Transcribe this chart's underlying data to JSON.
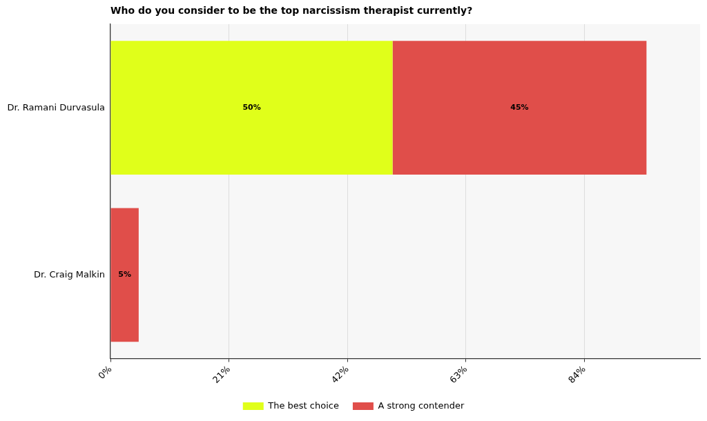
{
  "chart_data": {
    "type": "bar",
    "orientation": "horizontal",
    "stacked": true,
    "title": "Who do you consider to be the top narcissism therapist currently?",
    "categories": [
      "Dr. Ramani Durvasula",
      "Dr. Craig Malkin"
    ],
    "series": [
      {
        "name": "The best choice",
        "color": "#e0ff1a",
        "values": [
          50,
          null
        ],
        "value_labels": [
          "50%",
          null
        ]
      },
      {
        "name": "A strong contender",
        "color": "#e04e4a",
        "values": [
          45,
          5
        ],
        "value_labels": [
          "45%",
          "5%"
        ]
      }
    ],
    "xlim": [
      0,
      104.5
    ],
    "xticks": [
      {
        "value": 0,
        "label": "0%"
      },
      {
        "value": 21,
        "label": "21%"
      },
      {
        "value": 42,
        "label": "42%"
      },
      {
        "value": 63,
        "label": "63%"
      },
      {
        "value": 84,
        "label": "84%"
      }
    ],
    "grid": "x",
    "legend": "bottom"
  }
}
